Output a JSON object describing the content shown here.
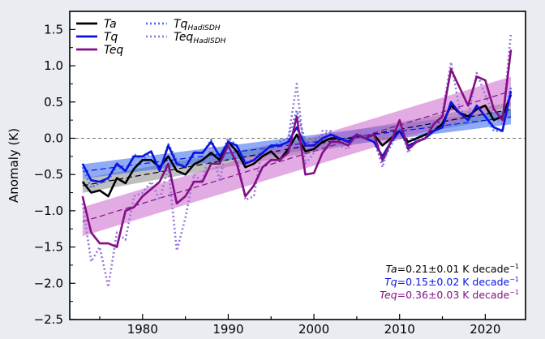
{
  "chart_data": {
    "type": "line",
    "xlabel": "",
    "ylabel": "Anomaly (K)",
    "xlim": [
      1971.5,
      2024.7
    ],
    "ylim": [
      -2.5,
      1.75
    ],
    "xticks": [
      1980,
      1990,
      2000,
      2010,
      2020
    ],
    "yticks": [
      -2.5,
      -2.0,
      -1.5,
      -1.0,
      -0.5,
      0.0,
      0.5,
      1.0,
      1.5
    ],
    "ytick_labels": [
      "−2.5",
      "−2.0",
      "−1.5",
      "−1.0",
      "−0.5",
      "0.0",
      "0.5",
      "1.0",
      "1.5"
    ],
    "zero_line": true,
    "grid": false,
    "legend_position": "top-left",
    "x": [
      1973,
      1974,
      1975,
      1976,
      1977,
      1978,
      1979,
      1980,
      1981,
      1982,
      1983,
      1984,
      1985,
      1986,
      1987,
      1988,
      1989,
      1990,
      1991,
      1992,
      1993,
      1994,
      1995,
      1996,
      1997,
      1998,
      1999,
      2000,
      2001,
      2002,
      2003,
      2004,
      2005,
      2006,
      2007,
      2008,
      2009,
      2010,
      2011,
      2012,
      2013,
      2014,
      2015,
      2016,
      2017,
      2018,
      2019,
      2020,
      2021,
      2022,
      2023
    ],
    "series": [
      {
        "name": "Ta",
        "color": "#000000",
        "style": "solid",
        "values": [
          -0.6,
          -0.75,
          -0.72,
          -0.8,
          -0.55,
          -0.62,
          -0.42,
          -0.3,
          -0.3,
          -0.4,
          -0.25,
          -0.45,
          -0.5,
          -0.36,
          -0.3,
          -0.2,
          -0.3,
          -0.05,
          -0.18,
          -0.4,
          -0.35,
          -0.25,
          -0.18,
          -0.3,
          -0.15,
          0.05,
          -0.18,
          -0.15,
          -0.05,
          0.0,
          0.0,
          -0.05,
          0.05,
          0.0,
          0.05,
          -0.1,
          0.0,
          0.1,
          -0.05,
          0.0,
          0.05,
          0.1,
          0.2,
          0.45,
          0.35,
          0.3,
          0.4,
          0.45,
          0.25,
          0.3,
          0.6
        ]
      },
      {
        "name": "Tq",
        "color": "#0a12e0",
        "style": "solid",
        "values": [
          -0.35,
          -0.58,
          -0.6,
          -0.55,
          -0.35,
          -0.45,
          -0.25,
          -0.25,
          -0.18,
          -0.45,
          -0.1,
          -0.35,
          -0.4,
          -0.2,
          -0.2,
          -0.05,
          -0.25,
          -0.05,
          -0.1,
          -0.35,
          -0.3,
          -0.2,
          -0.1,
          -0.1,
          -0.05,
          0.15,
          -0.1,
          -0.1,
          0.0,
          0.05,
          0.0,
          -0.05,
          0.05,
          0.0,
          -0.05,
          -0.25,
          -0.05,
          0.1,
          -0.1,
          -0.05,
          0.0,
          0.1,
          0.15,
          0.5,
          0.35,
          0.25,
          0.45,
          0.3,
          0.15,
          0.1,
          0.65
        ]
      },
      {
        "name": "Teq",
        "color": "#820f84",
        "style": "solid",
        "values": [
          -0.8,
          -1.3,
          -1.45,
          -1.45,
          -1.5,
          -1.0,
          -0.95,
          -0.8,
          -0.7,
          -0.6,
          -0.35,
          -0.9,
          -0.8,
          -0.6,
          -0.6,
          -0.35,
          -0.35,
          -0.1,
          -0.35,
          -0.8,
          -0.65,
          -0.4,
          -0.3,
          -0.3,
          -0.2,
          0.3,
          -0.5,
          -0.48,
          -0.2,
          -0.05,
          -0.05,
          -0.1,
          0.05,
          0.0,
          0.05,
          -0.3,
          -0.05,
          0.25,
          -0.15,
          -0.05,
          0.0,
          0.2,
          0.3,
          0.95,
          0.7,
          0.45,
          0.85,
          0.8,
          0.4,
          0.25,
          1.22
        ]
      },
      {
        "name": "TqHadISDH",
        "color": "#4b73e6",
        "style": "dotted",
        "values": [
          -0.4,
          -0.68,
          -0.62,
          -0.58,
          -0.38,
          -0.47,
          -0.22,
          -0.3,
          -0.2,
          -0.45,
          -0.08,
          -0.3,
          -0.4,
          -0.18,
          -0.22,
          -0.02,
          -0.28,
          0.0,
          -0.1,
          -0.32,
          -0.3,
          -0.15,
          -0.12,
          -0.05,
          0.0,
          0.38,
          -0.05,
          -0.05,
          0.05,
          0.08,
          0.0,
          -0.05,
          0.05,
          0.05,
          -0.05,
          -0.32,
          -0.1,
          0.12,
          -0.12,
          -0.02,
          0.05,
          0.12,
          0.2,
          0.45,
          0.33,
          0.25,
          0.45,
          0.3,
          0.1,
          0.1,
          0.7
        ]
      },
      {
        "name": "TeqHadISDH",
        "color": "#9a76d8",
        "style": "dotted",
        "values": [
          -0.9,
          -1.7,
          -1.5,
          -2.05,
          -1.3,
          -1.4,
          -0.8,
          -0.75,
          -0.6,
          -0.85,
          -0.4,
          -1.55,
          -1.1,
          -0.5,
          -0.6,
          -0.05,
          -0.6,
          0.0,
          -0.25,
          -0.85,
          -0.8,
          -0.1,
          -0.2,
          -0.2,
          0.0,
          0.75,
          -0.35,
          -0.2,
          0.1,
          0.1,
          -0.1,
          -0.15,
          0.05,
          0.1,
          0.0,
          -0.4,
          0.0,
          0.2,
          -0.2,
          0.0,
          0.05,
          0.15,
          0.35,
          1.05,
          0.4,
          0.3,
          0.9,
          0.6,
          0.3,
          0.2,
          1.45
        ]
      }
    ],
    "trends": [
      {
        "name": "Ta",
        "rate_per_year": 0.021,
        "ci": 0.1,
        "color": "#000000",
        "band_color": "#8a8a8a"
      },
      {
        "name": "Tq",
        "rate_per_year": 0.015,
        "ci": 0.1,
        "color": "#0a12e0",
        "band_color": "#3366ee"
      },
      {
        "name": "Teq",
        "rate_per_year": 0.036,
        "ci": 0.2,
        "color": "#820f84",
        "band_color": "#cc66cc"
      }
    ],
    "legend": [
      {
        "label": "Ta",
        "sub": "",
        "series": "Ta"
      },
      {
        "label": "Tq",
        "sub": "",
        "series": "Tq"
      },
      {
        "label": "Teq",
        "sub": "",
        "series": "Teq"
      },
      {
        "label": "Tq",
        "sub": "HadISDH",
        "series": "TqHadISDH"
      },
      {
        "label": "Teq",
        "sub": "HadISDH",
        "series": "TeqHadISDH"
      }
    ],
    "annotations": [
      {
        "var": "Ta",
        "text": "=0.21±0.01 K decade",
        "sup": "−1",
        "color": "#000000"
      },
      {
        "var": "Tq",
        "text": "=0.15±0.02 K decade",
        "sup": "−1",
        "color": "#0a12e0"
      },
      {
        "var": "Teq",
        "text": "=0.36±0.03 K decade",
        "sup": "−1",
        "color": "#820f84"
      }
    ]
  }
}
